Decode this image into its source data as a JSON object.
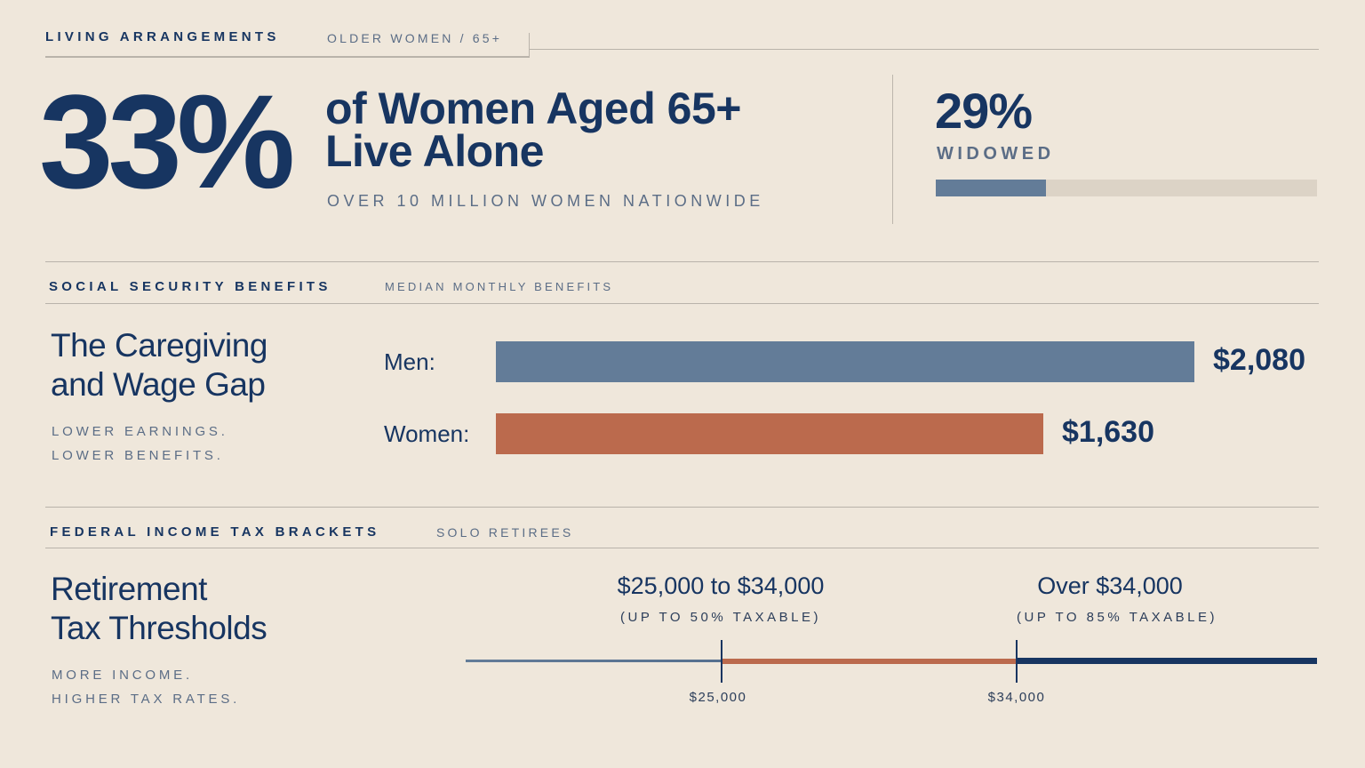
{
  "living": {
    "section_title": "LIVING ARRANGEMENTS",
    "section_sub": "OLDER WOMEN / 65+",
    "big_stat": "33%",
    "headline_line1": "of Women Aged 65+",
    "headline_line2": "Live Alone",
    "tagline": "OVER 10 MILLION WOMEN NATIONWIDE",
    "widowed_stat": "29%",
    "widowed_label": "WIDOWED",
    "widowed_fraction": 0.29
  },
  "social_security": {
    "section_title": "SOCIAL SECURITY BENEFITS",
    "section_sub": "MEDIAN MONTHLY BENEFITS",
    "title_line1": "The Caregiving",
    "title_line2": "and Wage Gap",
    "note_line1": "LOWER EARNINGS.",
    "note_line2": "LOWER BENEFITS.",
    "bars": [
      {
        "label": "Men:",
        "value": 2080,
        "display": "$2,080",
        "color": "#637c98"
      },
      {
        "label": "Women:",
        "value": 1630,
        "display": "$1,630",
        "color": "#bb6a4d"
      }
    ]
  },
  "tax": {
    "section_title": "FEDERAL INCOME TAX BRACKETS",
    "section_sub": "SOLO RETIREES",
    "title_line1": "Retirement",
    "title_line2": "Tax Thresholds",
    "note_line1": "MORE INCOME.",
    "note_line2": "HIGHER TAX RATES.",
    "bracket1_label": "$25,000 to $34,000",
    "bracket1_sub": "(UP TO 50% TAXABLE)",
    "bracket2_label": "Over $34,000",
    "bracket2_sub": "(UP TO 85% TAXABLE)",
    "tick1": "$25,000",
    "tick2": "$34,000"
  },
  "colors": {
    "navy": "#173561",
    "slate": "#637c98",
    "rust": "#bb6a4d",
    "background": "#efe7db"
  }
}
